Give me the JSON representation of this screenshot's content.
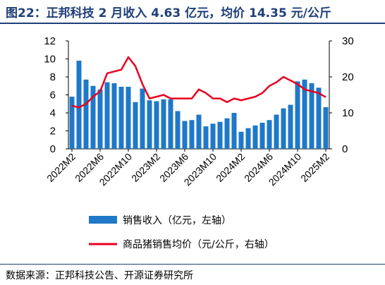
{
  "title": "图22：正邦科技 2 月收入 4.63 亿元，均价 14.35 元/公斤",
  "source": "数据来源：正邦科技公告、开源证券研究所",
  "colors": {
    "bar": "#1f78c8",
    "line": "#e8001e",
    "title": "#1f3f78"
  },
  "chart_data": {
    "type": "bar+line",
    "categories": [
      "2022M2",
      "2022M3",
      "2022M4",
      "2022M5",
      "2022M6",
      "2022M7",
      "2022M8",
      "2022M9",
      "2022M10",
      "2022M11",
      "2022M12",
      "2023M1",
      "2023M2",
      "2023M3",
      "2023M4",
      "2023M5",
      "2023M6",
      "2023M7",
      "2023M8",
      "2023M9",
      "2023M10",
      "2023M11",
      "2023M12",
      "2024M1",
      "2024M2",
      "2024M3",
      "2024M4",
      "2024M5",
      "2024M6",
      "2024M7",
      "2024M8",
      "2024M9",
      "2024M10",
      "2024M11",
      "2024M12",
      "2025M1",
      "2025M2"
    ],
    "x_tick_labels": [
      "2022M2",
      "2022M6",
      "2022M10",
      "2023M2",
      "2023M6",
      "2023M10",
      "2024M2",
      "2024M6",
      "2024M10",
      "2025M2"
    ],
    "series": [
      {
        "name": "销售收入（亿元，左轴）",
        "type": "bar",
        "axis": "left",
        "values": [
          5.8,
          9.8,
          7.7,
          7.0,
          6.6,
          7.4,
          7.3,
          6.9,
          6.9,
          5.2,
          6.7,
          5.4,
          5.3,
          5.5,
          5.5,
          4.2,
          3.1,
          3.2,
          3.8,
          2.5,
          2.8,
          3.0,
          3.4,
          4.0,
          1.9,
          2.3,
          2.6,
          2.9,
          3.2,
          3.8,
          4.5,
          4.9,
          7.5,
          7.7,
          7.3,
          6.8,
          4.63
        ]
      },
      {
        "name": "商品猪销售均价（元/公斤，右轴）",
        "type": "line",
        "axis": "right",
        "values": [
          12.0,
          11.5,
          12.5,
          14.5,
          16.0,
          21.0,
          21.5,
          22.0,
          25.5,
          23.0,
          18.0,
          14.0,
          14.5,
          15.0,
          14.0,
          14.0,
          14.0,
          14.0,
          16.5,
          15.5,
          14.0,
          14.0,
          13.0,
          14.0,
          13.5,
          14.0,
          14.5,
          15.5,
          17.5,
          18.5,
          20.0,
          19.0,
          18.0,
          16.5,
          16.0,
          15.5,
          14.35
        ]
      }
    ],
    "y_left": {
      "min": 0,
      "max": 12,
      "ticks": [
        0,
        2,
        4,
        6,
        8,
        10,
        12
      ]
    },
    "y_right": {
      "min": 0,
      "max": 30,
      "ticks": [
        0,
        10,
        20,
        30
      ]
    },
    "legend": {
      "position": "bottom"
    }
  }
}
